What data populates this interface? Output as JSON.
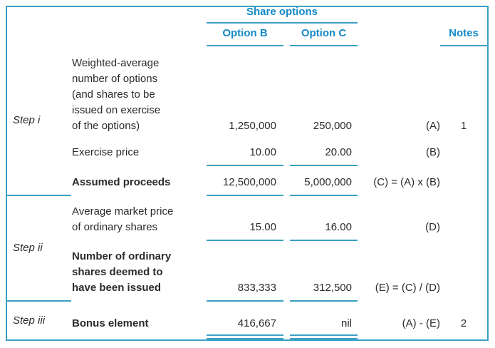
{
  "colors": {
    "accent": "#168ac6",
    "rule": "#3aa0c3",
    "ink": "#2d2a2b"
  },
  "header": {
    "group": "Share options",
    "option_b": "Option B",
    "option_c": "Option C",
    "notes": "Notes"
  },
  "steps": [
    {
      "label": "Step i"
    },
    {
      "label": "Step ii"
    },
    {
      "label": "Step iii"
    }
  ],
  "rows": [
    {
      "desc": "Weighted-average\nnumber of options\n(and shares to be\nissued on exercise\nof the options)",
      "b": "1,250,000",
      "c": "250,000",
      "formula": "(A)",
      "note": "1"
    },
    {
      "desc": "Exercise price",
      "b": "10.00",
      "c": "20.00",
      "formula": "(B)",
      "note": ""
    },
    {
      "desc": "Assumed proceeds",
      "b": "12,500,000",
      "c": "5,000,000",
      "formula": "(C) = (A) x (B)",
      "note": ""
    },
    {
      "desc": "Average market price\nof ordinary shares",
      "b": "15.00",
      "c": "16.00",
      "formula": "(D)",
      "note": ""
    },
    {
      "desc": "Number of ordinary\nshares deemed to\nhave been issued",
      "b": "833,333",
      "c": "312,500",
      "formula": "(E) = (C) / (D)",
      "note": ""
    },
    {
      "desc": "Bonus element",
      "b": "416,667",
      "c": "nil",
      "formula": "(A) - (E)",
      "note": "2"
    }
  ]
}
